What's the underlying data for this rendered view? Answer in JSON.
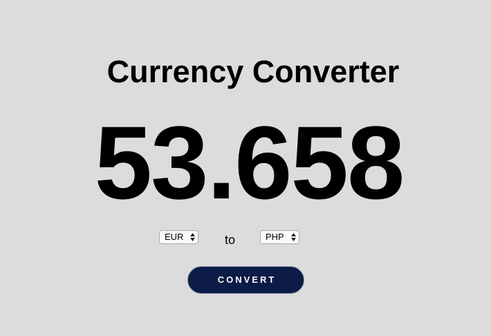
{
  "header": {
    "title": "Currency Converter"
  },
  "result": {
    "value": "53.658"
  },
  "converter": {
    "from_currency": "EUR",
    "to_label": "to",
    "to_currency": "PHP",
    "convert_label": "CONVERT"
  },
  "colors": {
    "background": "#dcdcdc",
    "button_bg": "#0d1b47",
    "button_text": "#ffffff"
  }
}
